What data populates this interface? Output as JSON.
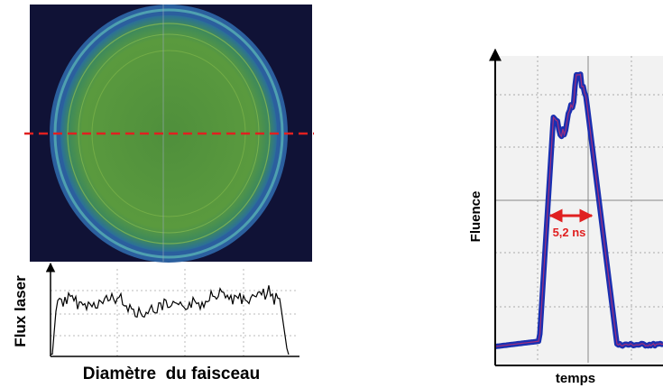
{
  "left_panel": {
    "y_label": "Flux laser",
    "x_label": "Diamètre  du faisceau"
  },
  "right_panel": {
    "y_label": "Fluence",
    "x_label": "temps",
    "annotation": "5,2 ns"
  }
}
